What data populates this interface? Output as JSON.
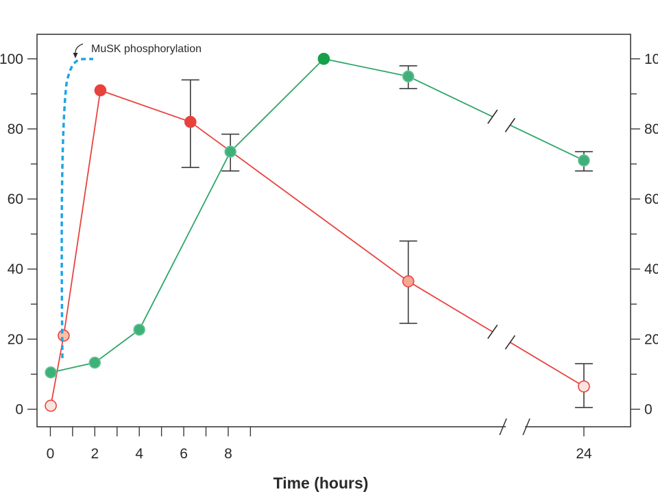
{
  "chart_data": {
    "type": "line",
    "title": "",
    "xlabel": "Time (hours)",
    "ylabel": "",
    "xlim": [
      -0.6,
      26.1
    ],
    "ylim": [
      -5,
      107
    ],
    "x_ticks": [
      0,
      1,
      2,
      3,
      4,
      5,
      6,
      7,
      8,
      9,
      24
    ],
    "x_tick_labels": [
      {
        "x": 0,
        "label": "0"
      },
      {
        "x": 2,
        "label": "2"
      },
      {
        "x": 4,
        "label": "4"
      },
      {
        "x": 6,
        "label": "6"
      },
      {
        "x": 8,
        "label": "8"
      },
      {
        "x": 24,
        "label": "24"
      }
    ],
    "x_axis_break": "between 9 and 24",
    "y_ticks": [
      0,
      10,
      20,
      30,
      40,
      50,
      60,
      70,
      80,
      90,
      100
    ],
    "y_tick_labels": [
      "0",
      "20",
      "40",
      "60",
      "80",
      "100"
    ],
    "right_y_tick_labels": [
      "0",
      "20",
      "40",
      "60",
      "80",
      "100"
    ],
    "grid": false,
    "series": [
      {
        "color": "#e8423e",
        "points": [
          {
            "x": 0.02,
            "y": 1,
            "marker": "#fbe4e0",
            "edge": "#e8423e"
          },
          {
            "x": 0.6,
            "y": 21,
            "marker": "#f6c0ad",
            "edge": "#e8423e"
          },
          {
            "x": 2.25,
            "y": 91,
            "marker": "#e8423e",
            "edge": "#e8423e"
          },
          {
            "x": 6.3,
            "y": 82,
            "marker": "#e8423e",
            "edge": "#e8423e",
            "err_low": 69,
            "err_high": 94
          },
          {
            "x": 16.1,
            "y": 36.5,
            "marker": "#f4a994",
            "edge": "#e8423e",
            "err_low": 24.5,
            "err_high": 48
          },
          {
            "x": 24,
            "y": 6.5,
            "marker": "#fbe4e0",
            "edge": "#e8423e",
            "err_low": 0.5,
            "err_high": 13
          }
        ],
        "break_after_x": 16.1
      },
      {
        "color": "#2ea566",
        "points": [
          {
            "x": 0.02,
            "y": 10.5,
            "marker": "#3fb07a",
            "edge": "#6cc59a"
          },
          {
            "x": 2.0,
            "y": 13.3,
            "marker": "#3fb07a",
            "edge": "#6cc59a"
          },
          {
            "x": 4.0,
            "y": 22.7,
            "marker": "#3fb07a",
            "edge": "#6cc59a"
          },
          {
            "x": 8.1,
            "y": 73.5,
            "marker": "#3fb07a",
            "edge": "#6cc59a",
            "err_low": 68,
            "err_high": 78.5
          },
          {
            "x": 12.3,
            "y": 100,
            "marker": "#16a04a",
            "edge": "#16a04a"
          },
          {
            "x": 16.1,
            "y": 95,
            "marker": "#3fb07a",
            "edge": "#6cc59a",
            "err_low": 91.5,
            "err_high": 98
          }
        ],
        "tail": [
          {
            "x": 24,
            "y": 71,
            "marker": "#3fb07a",
            "edge": "#6cc59a",
            "err_low": 68,
            "err_high": 73.5
          }
        ]
      }
    ],
    "annotations": [
      {
        "text": "MuSK phosphorylation",
        "color": "#1ea5e4",
        "style": "dashed"
      }
    ]
  }
}
